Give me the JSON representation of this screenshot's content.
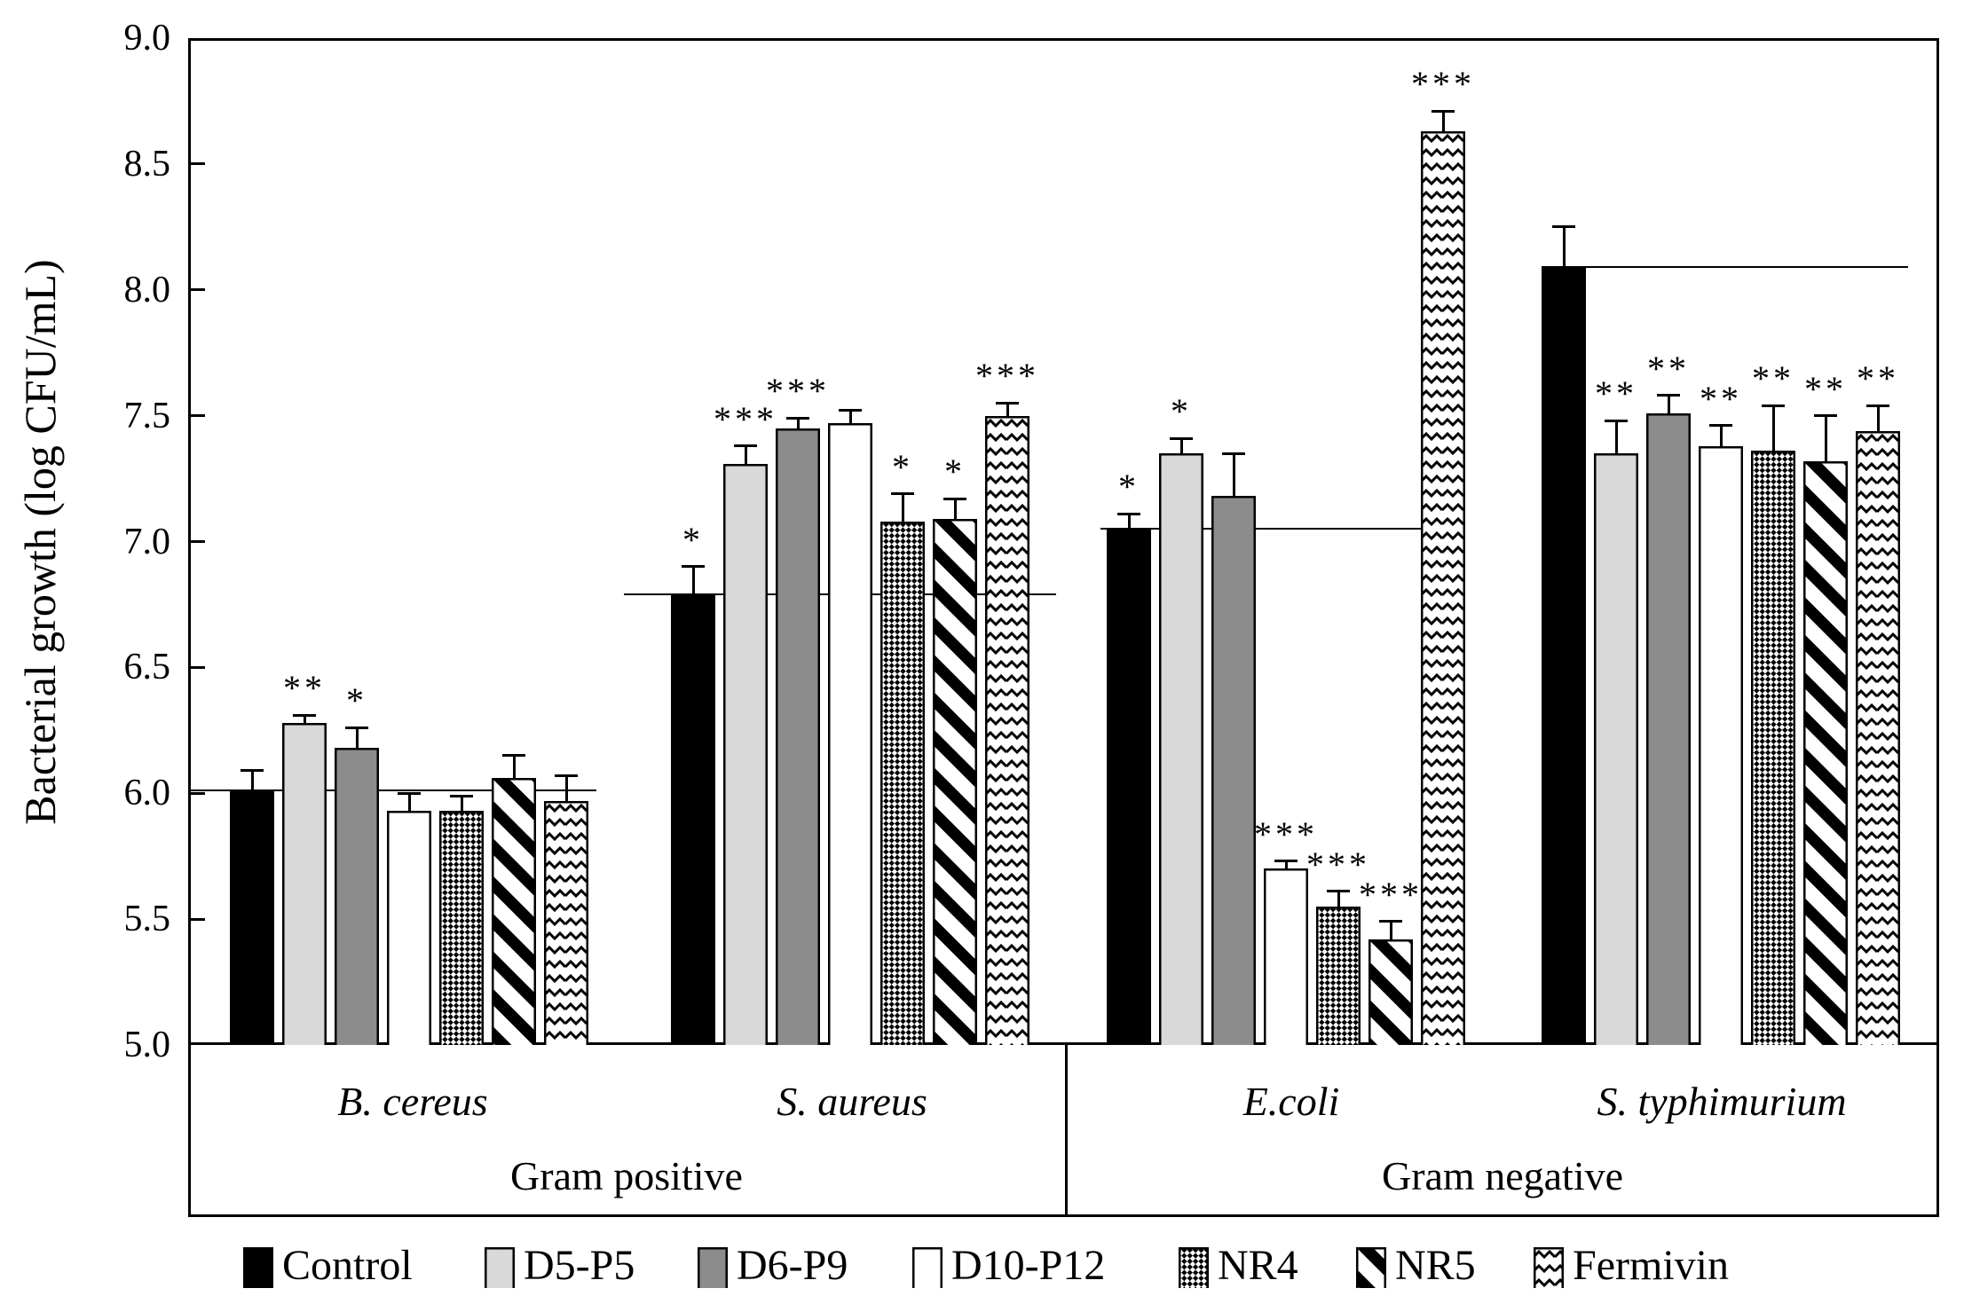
{
  "figure": {
    "y_axis": {
      "title": "Bacterial growth (log CFU/mL)",
      "tick_labels": [
        "9.0",
        "8.5",
        "8.0",
        "7.5",
        "7.0",
        "6.5",
        "6.0",
        "5.5",
        "5.0"
      ],
      "min": 5.0,
      "max": 9.0,
      "step": 0.5
    },
    "x_axis": {
      "species_labels": [
        "B. cereus",
        "S. aureus",
        "E.coli",
        "S. typhimurium"
      ],
      "group_labels": [
        "Gram positive",
        "Gram negative"
      ]
    },
    "colors": {
      "black": "#000000",
      "light_gray": "#d9d9d9",
      "dark_gray": "#8c8c8c",
      "white": "#ffffff"
    }
  },
  "chart_data": {
    "type": "bar",
    "title": "",
    "xlabel": "",
    "ylabel": "Bacterial growth (log CFU/mL)",
    "ylim": [
      5.0,
      9.0
    ],
    "ytick_step": 0.5,
    "grid": false,
    "legend_position": "bottom",
    "categories": [
      "B. cereus",
      "S. aureus",
      "E.coli",
      "S. typhimurium"
    ],
    "category_groups": [
      {
        "label": "Gram positive",
        "categories": [
          "B. cereus",
          "S. aureus"
        ]
      },
      {
        "label": "Gram negative",
        "categories": [
          "E.coli",
          "S. typhimurium"
        ]
      }
    ],
    "series": [
      {
        "name": "Control",
        "pattern": "solid-black",
        "values": [
          6.01,
          6.79,
          7.05,
          8.09
        ],
        "errors": [
          0.08,
          0.11,
          0.06,
          0.16
        ],
        "sig": [
          "",
          "*",
          "*",
          ""
        ]
      },
      {
        "name": "D5-P5",
        "pattern": "light-gray",
        "values": [
          6.28,
          7.31,
          7.35,
          7.35
        ],
        "errors": [
          0.03,
          0.07,
          0.06,
          0.13
        ],
        "sig": [
          "**",
          "***",
          "*",
          "**"
        ]
      },
      {
        "name": "D6-P9",
        "pattern": "dark-gray",
        "values": [
          6.18,
          7.45,
          7.18,
          7.51
        ],
        "errors": [
          0.08,
          0.04,
          0.17,
          0.07
        ],
        "sig": [
          "*",
          "***",
          "",
          "**"
        ]
      },
      {
        "name": "D10-P12",
        "pattern": "white",
        "values": [
          5.93,
          7.47,
          5.7,
          7.38
        ],
        "errors": [
          0.07,
          0.05,
          0.03,
          0.08
        ],
        "sig": [
          "",
          "",
          "***",
          "**"
        ]
      },
      {
        "name": "NR4",
        "pattern": "checker",
        "values": [
          5.93,
          7.08,
          5.55,
          7.36
        ],
        "errors": [
          0.06,
          0.11,
          0.06,
          0.18
        ],
        "sig": [
          "",
          "*",
          "***",
          "**"
        ]
      },
      {
        "name": "NR5",
        "pattern": "diagonal",
        "values": [
          6.06,
          7.09,
          5.42,
          7.32
        ],
        "errors": [
          0.09,
          0.08,
          0.07,
          0.18
        ],
        "sig": [
          "",
          "*",
          "***",
          "**"
        ]
      },
      {
        "name": "Fermivin",
        "pattern": "zigzag",
        "values": [
          5.97,
          7.5,
          8.63,
          7.44
        ],
        "errors": [
          0.1,
          0.05,
          0.08,
          0.1
        ],
        "sig": [
          "",
          "***",
          "***",
          "**"
        ]
      }
    ],
    "reference_lines": [
      {
        "category": "B. cereus",
        "value": 6.01
      },
      {
        "category": "S. aureus",
        "value": 6.79
      },
      {
        "category": "E.coli",
        "value": 7.05
      },
      {
        "category": "S. typhimurium",
        "value": 8.09
      }
    ]
  }
}
